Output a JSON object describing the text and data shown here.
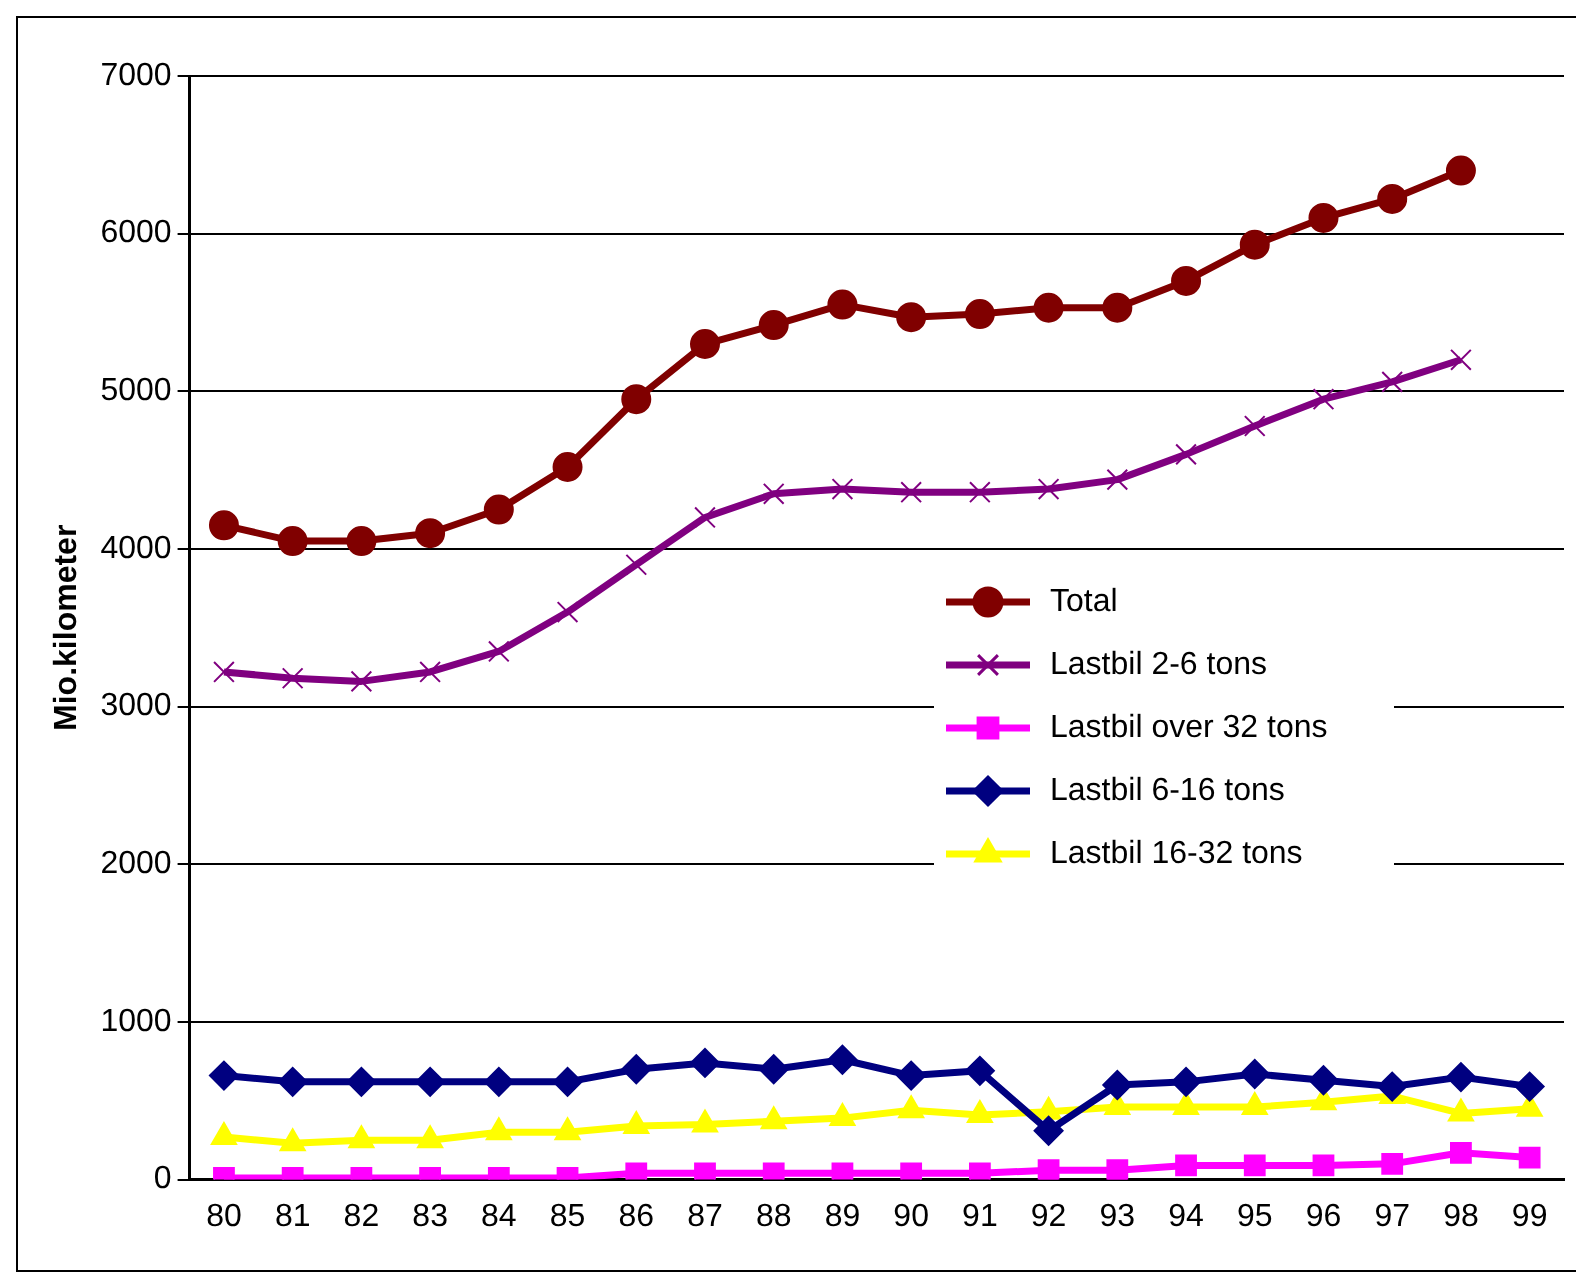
{
  "chart_data": {
    "type": "line",
    "ylabel": "Mio.kilometer",
    "categories": [
      "80",
      "81",
      "82",
      "83",
      "84",
      "85",
      "86",
      "87",
      "88",
      "89",
      "90",
      "91",
      "92",
      "93",
      "94",
      "95",
      "96",
      "97",
      "98",
      "99"
    ],
    "ylim": [
      0,
      7000
    ],
    "yticks": [
      0,
      1000,
      2000,
      3000,
      4000,
      5000,
      6000,
      7000
    ],
    "grid": "y",
    "legend": "right",
    "series": [
      {
        "name": "Total",
        "color": "#800000",
        "marker": "circle",
        "values": [
          4150,
          4050,
          4050,
          4100,
          4250,
          4520,
          4950,
          5300,
          5420,
          5550,
          5470,
          5490,
          5530,
          5530,
          5700,
          5930,
          6100,
          6220,
          6400,
          null
        ]
      },
      {
        "name": "Lastbil 2-6 tons",
        "color": "#800080",
        "marker": "cross",
        "values": [
          3220,
          3180,
          3160,
          3220,
          3350,
          3600,
          3900,
          4200,
          4350,
          4380,
          4360,
          4360,
          4380,
          4440,
          4600,
          4780,
          4950,
          5060,
          5200,
          null
        ]
      },
      {
        "name": "Lastbil over 32 tons",
        "color": "#ff00ff",
        "marker": "square",
        "values": [
          10,
          10,
          10,
          10,
          10,
          10,
          40,
          40,
          40,
          40,
          40,
          40,
          60,
          60,
          90,
          90,
          90,
          100,
          170,
          140
        ]
      },
      {
        "name": "Lastbil 6-16 tons",
        "color": "#000080",
        "marker": "diamond",
        "values": [
          660,
          620,
          620,
          620,
          620,
          620,
          700,
          740,
          700,
          760,
          660,
          690,
          310,
          600,
          620,
          670,
          630,
          590,
          650,
          590
        ]
      },
      {
        "name": "Lastbil 16-32 tons",
        "color": "#ffff00",
        "marker": "triangle",
        "values": [
          270,
          230,
          250,
          250,
          300,
          300,
          340,
          350,
          370,
          390,
          440,
          410,
          430,
          460,
          460,
          460,
          490,
          530,
          420,
          450
        ]
      }
    ]
  }
}
